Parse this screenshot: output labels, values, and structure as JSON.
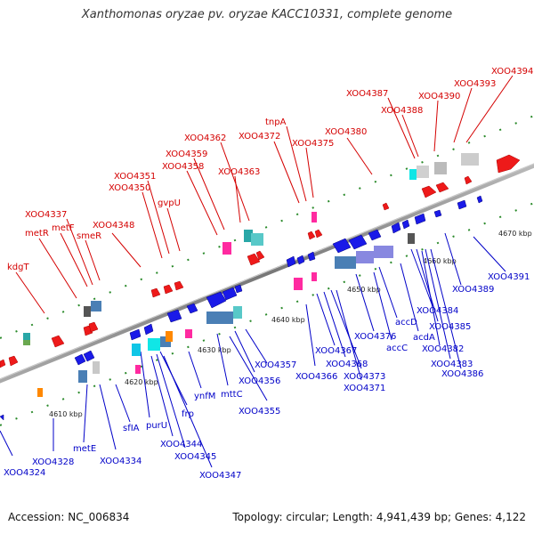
{
  "title": "Xanthomonas oryzae pv. oryzae KACC10331, complete genome",
  "accession": "Accession: NC_006834",
  "topology": "Topology: circular; Length: 4,941,439 bp; Genes: 4,122",
  "ticks": [
    "4610 kbp",
    "4620 kbp",
    "4630 kbp",
    "4640 kbp",
    "4650 kbp",
    "4660 kbp",
    "4670 kbp"
  ],
  "labels": {
    "forward": [
      "kdgT",
      "metR",
      "metF",
      "XOO4337",
      "smeR",
      "XOO4348",
      "XOO4350",
      "XOO4351",
      "gvpU",
      "XOO4358",
      "XOO4359",
      "XOO4362",
      "XOO4363",
      "XOO4372",
      "tnpA",
      "XOO4375",
      "XOO4380",
      "XOO4387",
      "XOO4388",
      "XOO4390",
      "XOO4393",
      "XOO4394"
    ],
    "reverse": [
      "XOO4324",
      "XOO4328",
      "metE",
      "XOO4334",
      "sfIA",
      "purU",
      "XOO4344",
      "XOO4345",
      "frp",
      "XOO4347",
      "ynfM",
      "mttC",
      "XOO4355",
      "XOO4356",
      "XOO4357",
      "XOO4366",
      "XOO4367",
      "XOO4368",
      "XOO4373",
      "XOO4371",
      "XOO4376",
      "accD",
      "accC",
      "acdA",
      "XOO4384",
      "XOO4385",
      "XOO4382",
      "XOO4383",
      "XOO4386",
      "XOO4389",
      "XOO4391"
    ]
  }
}
